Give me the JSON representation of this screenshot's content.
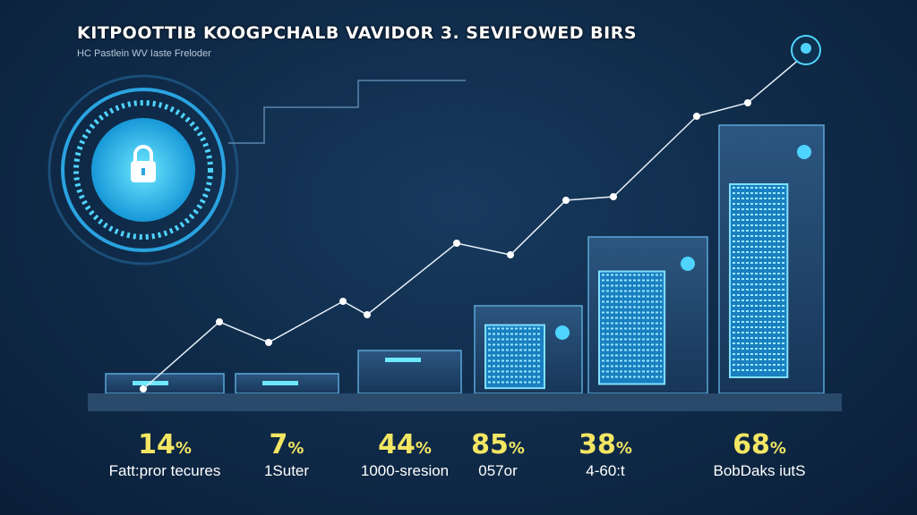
{
  "header": {
    "title": "KITPOOTTIB KOOGPCHALB VAVIDOR 3. SEVIFOWED BIRS",
    "subtitle": "HC Pastlein WV Iaste Freloder"
  },
  "icons": {
    "hero": "padlock-icon",
    "top": "lock-badge-icon"
  },
  "colors": {
    "accent": "#4fd4ff",
    "value": "#f3e663",
    "background": "#0f2a48"
  },
  "chart_data": {
    "type": "bar",
    "title": "KITPOOTTIB KOOGPCHALB VAVIDOR 3. SEVIFOWED BIRS",
    "categories": [
      "Fatt:pror tecures",
      "1Suter",
      "1000-sresion",
      "057or",
      "4-60:t",
      "BobDaks iutS"
    ],
    "value_labels": [
      "14",
      "7",
      "44",
      "85",
      "38",
      "68"
    ],
    "unit": "%",
    "trend_line": "rising",
    "grid": false
  }
}
